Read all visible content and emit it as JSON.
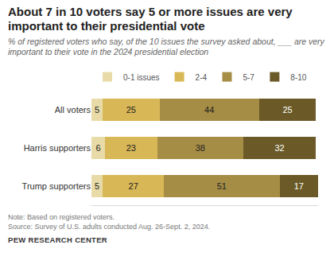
{
  "chart_data": {
    "type": "bar",
    "title": "About 7 in 10 voters say 5 or more issues are very important to their presidential vote",
    "subtitle": "% of registered voters who say, of the 10 issues the survey asked about, ___ are very important to their vote in the 2024 presidential election",
    "annotations": [
      "Note: Based on registered voters.",
      "Source: Survey of U.S. adults conducted Aug. 26-Sept. 2, 2024.",
      "PEW RESEARCH CENTER"
    ],
    "orientation": "horizontal",
    "stacked": true,
    "data_labels": true,
    "tick_labels": "y",
    "grid": false,
    "legend": "top",
    "xlim": [
      0,
      100
    ],
    "categories": [
      "All voters",
      "Harris supporters",
      "Trump supporters"
    ],
    "series": [
      {
        "name": "0-1 issues",
        "color": "#e8dba8",
        "values": [
          5,
          6,
          5
        ]
      },
      {
        "name": "2-4",
        "color": "#d8b756",
        "values": [
          25,
          23,
          27
        ]
      },
      {
        "name": "5-7",
        "color": "#a68d45",
        "values": [
          44,
          38,
          51
        ]
      },
      {
        "name": "8-10",
        "color": "#6b5a27",
        "values": [
          25,
          32,
          17
        ]
      }
    ]
  }
}
